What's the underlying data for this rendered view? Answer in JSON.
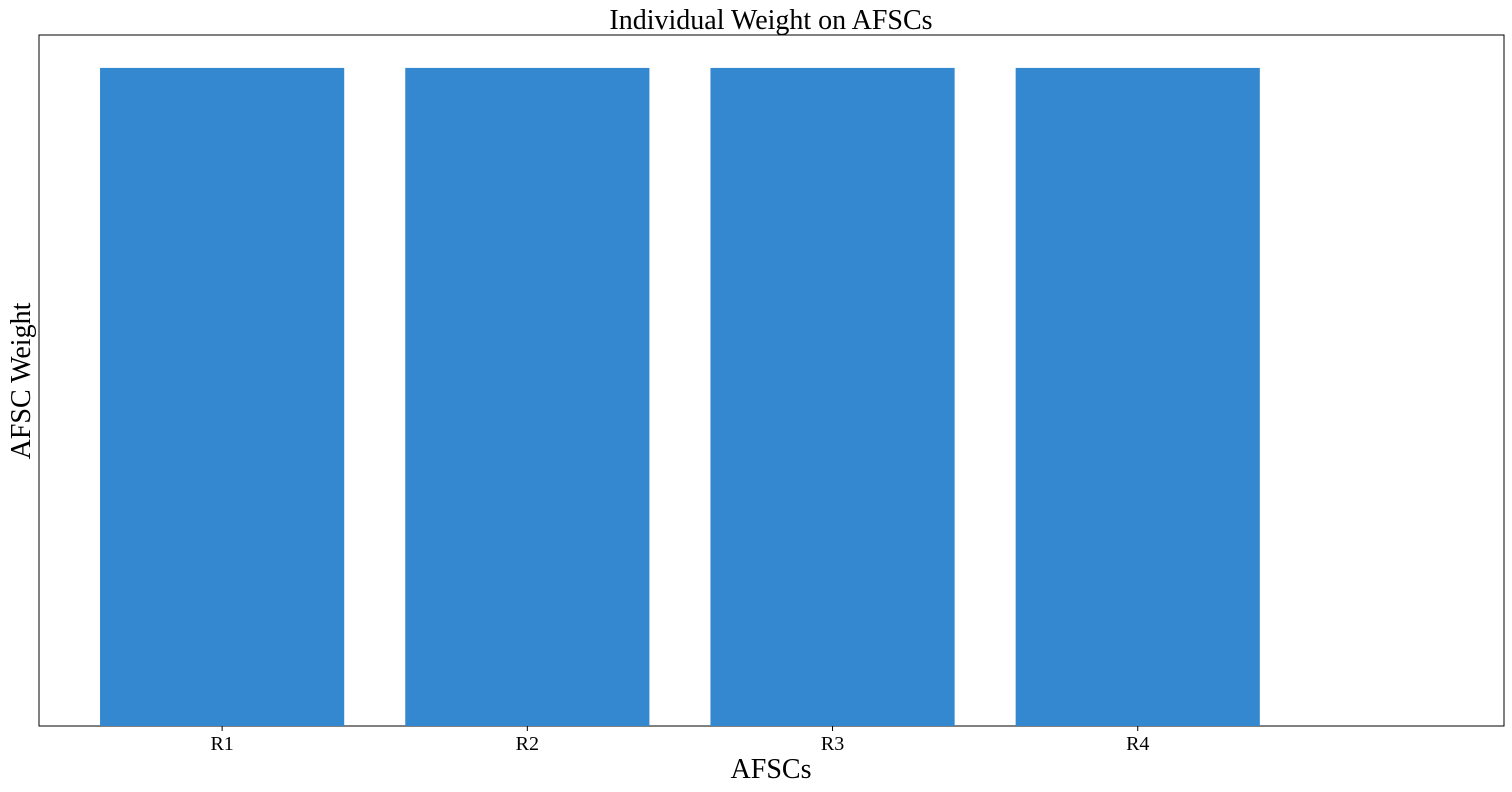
{
  "chart_data": {
    "type": "bar",
    "title": "Individual Weight on AFSCs",
    "xlabel": "AFSCs",
    "ylabel": "AFSC Weight",
    "categories": [
      "R1",
      "R2",
      "R3",
      "R4"
    ],
    "values": [
      1,
      1,
      1,
      1
    ],
    "ylim": [
      0,
      1.05
    ],
    "y_ticks_shown": false,
    "grid": false,
    "bar_color": "#3388cf"
  }
}
